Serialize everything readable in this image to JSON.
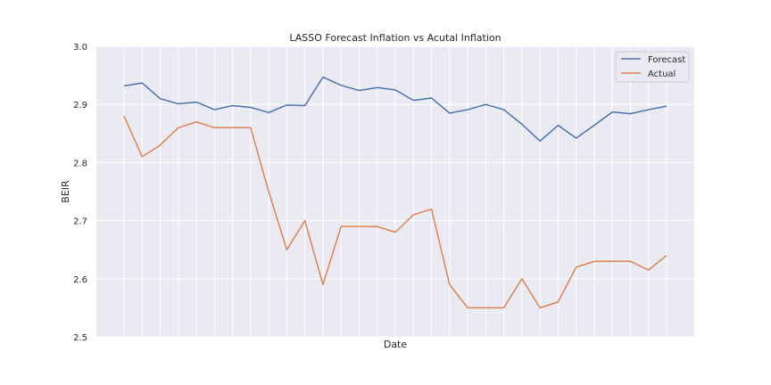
{
  "chart_data": {
    "type": "line",
    "title": "LASSO Forecast Inflation vs Acutal Inflation",
    "xlabel": "Date",
    "ylabel": "BEIR",
    "ylim": [
      2.5,
      3.0
    ],
    "yticks": [
      "2.5",
      "2.6",
      "2.7",
      "2.8",
      "2.9",
      "3.0"
    ],
    "grid": true,
    "legend_position": "top-right",
    "x_count": 31,
    "series": [
      {
        "name": "Forecast",
        "color": "#4c72b0",
        "values": [
          2.932,
          2.937,
          2.91,
          2.901,
          2.904,
          2.891,
          2.898,
          2.895,
          2.886,
          2.899,
          2.898,
          2.947,
          2.933,
          2.924,
          2.929,
          2.925,
          2.907,
          2.911,
          2.885,
          2.891,
          2.9,
          2.891,
          2.866,
          2.837,
          2.864,
          2.842,
          2.864,
          2.887,
          2.884,
          2.891,
          2.897
        ]
      },
      {
        "name": "Actual",
        "color": "#dd8452",
        "values": [
          2.88,
          2.81,
          2.83,
          2.86,
          2.87,
          2.86,
          2.86,
          2.86,
          2.75,
          2.65,
          2.7,
          2.59,
          2.69,
          2.69,
          2.69,
          2.68,
          2.71,
          2.72,
          2.59,
          2.55,
          2.55,
          2.55,
          2.6,
          2.55,
          2.56,
          2.62,
          2.63,
          2.63,
          2.63,
          2.615,
          2.64
        ]
      }
    ]
  }
}
